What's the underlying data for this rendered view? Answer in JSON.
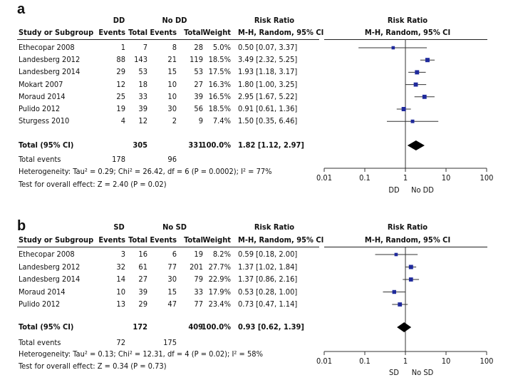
{
  "chart_data": [
    {
      "type": "forest",
      "panel_label": "a",
      "group1": "DD",
      "group2": "No DD",
      "headers": {
        "study": "Study or Subgroup",
        "events": "Events",
        "total": "Total",
        "weight": "Weight",
        "rr_title": "Risk Ratio",
        "rr_method": "M-H, Random, 95% CI",
        "plot_title": "Risk Ratio",
        "plot_method": "M-H, Random, 95% CI"
      },
      "studies": [
        {
          "name": "Ethecopar 2008",
          "e1": "1",
          "t1": "7",
          "e2": "8",
          "t2": "28",
          "weight": "5.0%",
          "ci": "0.50 [0.07, 3.37]",
          "rr": 0.5,
          "lo": 0.07,
          "hi": 3.37
        },
        {
          "name": "Landesberg 2012",
          "e1": "88",
          "t1": "143",
          "e2": "21",
          "t2": "119",
          "weight": "18.5%",
          "ci": "3.49 [2.32, 5.25]",
          "rr": 3.49,
          "lo": 2.32,
          "hi": 5.25
        },
        {
          "name": "Landesberg 2014",
          "e1": "29",
          "t1": "53",
          "e2": "15",
          "t2": "53",
          "weight": "17.5%",
          "ci": "1.93 [1.18, 3.17]",
          "rr": 1.93,
          "lo": 1.18,
          "hi": 3.17
        },
        {
          "name": "Mokart 2007",
          "e1": "12",
          "t1": "18",
          "e2": "10",
          "t2": "27",
          "weight": "16.3%",
          "ci": "1.80 [1.00, 3.25]",
          "rr": 1.8,
          "lo": 1.0,
          "hi": 3.25
        },
        {
          "name": "Moraud 2014",
          "e1": "25",
          "t1": "33",
          "e2": "10",
          "t2": "39",
          "weight": "16.5%",
          "ci": "2.95 [1.67, 5.22]",
          "rr": 2.95,
          "lo": 1.67,
          "hi": 5.22
        },
        {
          "name": "Pulido 2012",
          "e1": "19",
          "t1": "39",
          "e2": "30",
          "t2": "56",
          "weight": "18.5%",
          "ci": "0.91 [0.61, 1.36]",
          "rr": 0.91,
          "lo": 0.61,
          "hi": 1.36
        },
        {
          "name": "Sturgess 2010",
          "e1": "4",
          "t1": "12",
          "e2": "2",
          "t2": "9",
          "weight": "7.4%",
          "ci": "1.50 [0.35, 6.46]",
          "rr": 1.5,
          "lo": 0.35,
          "hi": 6.46
        }
      ],
      "total": {
        "name": "Total (95% CI)",
        "t1": "305",
        "t2": "331",
        "weight": "100.0%",
        "ci": "1.82 [1.12, 2.97]",
        "rr": 1.82,
        "lo": 1.12,
        "hi": 2.97
      },
      "total_events": {
        "label": "Total events",
        "e1": "178",
        "e2": "96"
      },
      "heterogeneity": "Heterogeneity: Tau² = 0.29; Chi² = 26.42, df = 6 (P = 0.0002); I² = 77%",
      "overall_effect": "Test for overall effect: Z = 2.40 (P = 0.02)",
      "axis": {
        "scale": "log",
        "ticks": [
          0.01,
          0.1,
          1,
          10,
          100
        ],
        "tick_labels": [
          "0.01",
          "0.1",
          "1",
          "10",
          "100"
        ],
        "left_label": "DD",
        "right_label": "No DD"
      }
    },
    {
      "type": "forest",
      "panel_label": "b",
      "group1": "SD",
      "group2": "No SD",
      "headers": {
        "study": "Study or Subgroup",
        "events": "Events",
        "total": "Total",
        "weight": "Weight",
        "rr_title": "Risk Ratio",
        "rr_method": "M-H, Random, 95% CI",
        "plot_title": "Risk Ratio",
        "plot_method": "M-H, Random, 95% CI"
      },
      "studies": [
        {
          "name": "Ethecopar 2008",
          "e1": "3",
          "t1": "16",
          "e2": "6",
          "t2": "19",
          "weight": "8.2%",
          "ci": "0.59 [0.18, 2.00]",
          "rr": 0.59,
          "lo": 0.18,
          "hi": 2.0
        },
        {
          "name": "Landesberg 2012",
          "e1": "32",
          "t1": "61",
          "e2": "77",
          "t2": "201",
          "weight": "27.7%",
          "ci": "1.37 [1.02, 1.84]",
          "rr": 1.37,
          "lo": 1.02,
          "hi": 1.84
        },
        {
          "name": "Landesberg 2014",
          "e1": "14",
          "t1": "27",
          "e2": "30",
          "t2": "79",
          "weight": "22.9%",
          "ci": "1.37 [0.86, 2.16]",
          "rr": 1.37,
          "lo": 0.86,
          "hi": 2.16
        },
        {
          "name": "Moraud 2014",
          "e1": "10",
          "t1": "39",
          "e2": "15",
          "t2": "33",
          "weight": "17.9%",
          "ci": "0.53 [0.28, 1.00]",
          "rr": 0.53,
          "lo": 0.28,
          "hi": 1.0
        },
        {
          "name": "Pulido 2012",
          "e1": "13",
          "t1": "29",
          "e2": "47",
          "t2": "77",
          "weight": "23.4%",
          "ci": "0.73 [0.47, 1.14]",
          "rr": 0.73,
          "lo": 0.47,
          "hi": 1.14
        }
      ],
      "total": {
        "name": "Total (95% CI)",
        "t1": "172",
        "t2": "409",
        "weight": "100.0%",
        "ci": "0.93 [0.62, 1.39]",
        "rr": 0.93,
        "lo": 0.62,
        "hi": 1.39
      },
      "total_events": {
        "label": "Total events",
        "e1": "72",
        "e2": "175"
      },
      "heterogeneity": "Heterogeneity: Tau² = 0.13; Chi² = 12.31, df = 4 (P = 0.02); I² = 58%",
      "overall_effect": "Test for overall effect: Z = 0.34 (P = 0.73)",
      "axis": {
        "scale": "log",
        "ticks": [
          0.01,
          0.1,
          1,
          10,
          100
        ],
        "tick_labels": [
          "0.01",
          "0.1",
          "1",
          "10",
          "100"
        ],
        "left_label": "SD",
        "right_label": "No SD"
      }
    }
  ],
  "colors": {
    "marker": "#1f2a9c",
    "line": "#333333",
    "diamond": "#000000"
  }
}
